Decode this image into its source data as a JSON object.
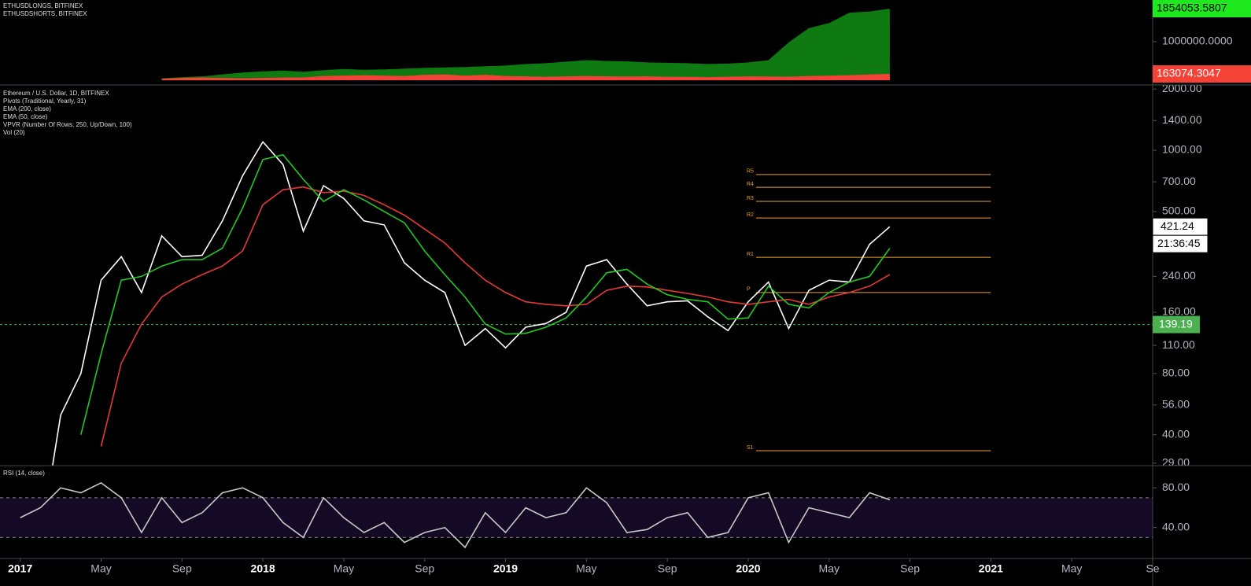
{
  "chart_data": [
    {
      "type": "area",
      "x": [
        "2017-08",
        "2017-09",
        "2017-10",
        "2017-11",
        "2017-12",
        "2018-01",
        "2018-02",
        "2018-03",
        "2018-04",
        "2018-05",
        "2018-06",
        "2018-07",
        "2018-08",
        "2018-09",
        "2018-10",
        "2018-11",
        "2018-12",
        "2019-01",
        "2019-02",
        "2019-03",
        "2019-04",
        "2019-05",
        "2019-06",
        "2019-07",
        "2019-08",
        "2019-09",
        "2019-10",
        "2019-11",
        "2019-12",
        "2020-01",
        "2020-02",
        "2020-03",
        "2020-04",
        "2020-05",
        "2020-06",
        "2020-07",
        "2020-08"
      ],
      "series": [
        {
          "name": "ETHUSDLONGS, BITFINEX",
          "color": "#0f7a12",
          "label_color": "#1ee81e",
          "values": [
            50000,
            80000,
            100000,
            150000,
            200000,
            230000,
            250000,
            220000,
            260000,
            290000,
            270000,
            280000,
            300000,
            320000,
            330000,
            340000,
            360000,
            380000,
            420000,
            440000,
            480000,
            520000,
            500000,
            490000,
            460000,
            450000,
            440000,
            420000,
            430000,
            460000,
            520000,
            980000,
            1350000,
            1480000,
            1750000,
            1780000,
            1854053.5807
          ]
        },
        {
          "name": "ETHUSDSHORTS, BITFINEX",
          "color": "#f44336",
          "label_color": "#f44336",
          "values": [
            40000,
            60000,
            70000,
            60000,
            50000,
            60000,
            70000,
            70000,
            110000,
            120000,
            130000,
            120000,
            110000,
            140000,
            150000,
            120000,
            140000,
            110000,
            100000,
            90000,
            100000,
            110000,
            100000,
            95000,
            100000,
            90000,
            85000,
            80000,
            90000,
            100000,
            95000,
            90000,
            110000,
            120000,
            130000,
            150000,
            163074.3047
          ]
        }
      ],
      "ylim": [
        -122000,
        2078000
      ],
      "yticks": [
        {
          "value": 1000000,
          "label": "1000000.0000"
        }
      ]
    },
    {
      "type": "line",
      "x": [
        "2017-01",
        "2017-02",
        "2017-03",
        "2017-04",
        "2017-05",
        "2017-06",
        "2017-07",
        "2017-08",
        "2017-09",
        "2017-10",
        "2017-11",
        "2017-12",
        "2018-01",
        "2018-02",
        "2018-03",
        "2018-04",
        "2018-05",
        "2018-06",
        "2018-07",
        "2018-08",
        "2018-09",
        "2018-10",
        "2018-11",
        "2018-12",
        "2019-01",
        "2019-02",
        "2019-03",
        "2019-04",
        "2019-05",
        "2019-06",
        "2019-07",
        "2019-08",
        "2019-09",
        "2019-10",
        "2019-11",
        "2019-12",
        "2020-01",
        "2020-02",
        "2020-03",
        "2020-04",
        "2020-05",
        "2020-06",
        "2020-07",
        "2020-08"
      ],
      "series": [
        {
          "name": "Ethereum / U.S. Dollar, 1D, BITFINEX",
          "color": "#ffffff",
          "values": [
            8,
            12,
            50,
            80,
            230,
            300,
            200,
            380,
            300,
            305,
            450,
            750,
            1100,
            850,
            400,
            670,
            580,
            450,
            430,
            280,
            230,
            200,
            110,
            133,
            107,
            135,
            141,
            160,
            270,
            290,
            220,
            172,
            180,
            182,
            152,
            130,
            180,
            225,
            133,
            205,
            230,
            225,
            345,
            421.24
          ]
        },
        {
          "name": "EMA (200, close)",
          "color": "#e53935",
          "values": [
            null,
            null,
            null,
            null,
            35,
            90,
            140,
            190,
            220,
            245,
            270,
            320,
            540,
            640,
            660,
            620,
            630,
            600,
            540,
            480,
            410,
            350,
            280,
            230,
            200,
            180,
            175,
            172,
            175,
            205,
            215,
            213,
            205,
            198,
            190,
            180,
            175,
            180,
            185,
            175,
            190,
            200,
            215,
            245
          ]
        },
        {
          "name": "EMA (50, close)",
          "color": "#22c922",
          "values": [
            null,
            null,
            null,
            40,
            100,
            230,
            240,
            270,
            290,
            290,
            330,
            520,
            900,
            950,
            720,
            560,
            640,
            570,
            500,
            440,
            320,
            245,
            190,
            140,
            125,
            126,
            135,
            150,
            190,
            250,
            260,
            220,
            195,
            185,
            180,
            148,
            150,
            215,
            175,
            168,
            200,
            225,
            240,
            330
          ]
        }
      ],
      "pivots": {
        "name": "Pivots (Traditional, Yearly, 31)",
        "color": "#f0a030",
        "x_range": [
          "2020-01",
          "2021-01"
        ],
        "levels": [
          {
            "label": "R5",
            "value": 760
          },
          {
            "label": "R4",
            "value": 658
          },
          {
            "label": "R3",
            "value": 561
          },
          {
            "label": "R2",
            "value": 465
          },
          {
            "label": "R1",
            "value": 298
          },
          {
            "label": "P",
            "value": 200
          },
          {
            "label": "S1",
            "value": 33.4
          }
        ]
      },
      "vpvr": "VPVR (Number Of Rows, 250, Up/Down, 100)",
      "volume": "Vol (20)",
      "hline": {
        "value": 139.19,
        "color": "#4caf50"
      },
      "countdown": "21:36:45",
      "log_scale": true,
      "ylim": [
        28.2,
        2094
      ],
      "yticks": [
        {
          "value": 29,
          "label": "29.00"
        },
        {
          "value": 40,
          "label": "40.00"
        },
        {
          "value": 56,
          "label": "56.00"
        },
        {
          "value": 80,
          "label": "80.00"
        },
        {
          "value": 110,
          "label": "110.00"
        },
        {
          "value": 160,
          "label": "160.00"
        },
        {
          "value": 240,
          "label": "240.00"
        },
        {
          "value": 500,
          "label": "500.00"
        },
        {
          "value": 700,
          "label": "700.00"
        },
        {
          "value": 1000,
          "label": "1000.00"
        },
        {
          "value": 1400,
          "label": "1400.00"
        },
        {
          "value": 2000,
          "label": "2000.00"
        }
      ],
      "xlim": [
        "2016-12",
        "2021-09"
      ],
      "xticks": [
        {
          "value": "2017-01",
          "label": "2017"
        },
        {
          "value": "2017-05",
          "label": "May"
        },
        {
          "value": "2017-09",
          "label": "Sep"
        },
        {
          "value": "2018-01",
          "label": "2018"
        },
        {
          "value": "2018-05",
          "label": "May"
        },
        {
          "value": "2018-09",
          "label": "Sep"
        },
        {
          "value": "2019-01",
          "label": "2019"
        },
        {
          "value": "2019-05",
          "label": "May"
        },
        {
          "value": "2019-09",
          "label": "Sep"
        },
        {
          "value": "2020-01",
          "label": "2020"
        },
        {
          "value": "2020-05",
          "label": "May"
        },
        {
          "value": "2020-09",
          "label": "Sep"
        },
        {
          "value": "2021-01",
          "label": "2021"
        },
        {
          "value": "2021-05",
          "label": "May"
        },
        {
          "value": "2021-09",
          "label": "Se"
        }
      ]
    },
    {
      "type": "line",
      "x": [
        "2017-01",
        "2017-02",
        "2017-03",
        "2017-04",
        "2017-05",
        "2017-06",
        "2017-07",
        "2017-08",
        "2017-09",
        "2017-10",
        "2017-11",
        "2017-12",
        "2018-01",
        "2018-02",
        "2018-03",
        "2018-04",
        "2018-05",
        "2018-06",
        "2018-07",
        "2018-08",
        "2018-09",
        "2018-10",
        "2018-11",
        "2018-12",
        "2019-01",
        "2019-02",
        "2019-03",
        "2019-04",
        "2019-05",
        "2019-06",
        "2019-07",
        "2019-08",
        "2019-09",
        "2019-10",
        "2019-11",
        "2019-12",
        "2020-01",
        "2020-02",
        "2020-03",
        "2020-04",
        "2020-05",
        "2020-06",
        "2020-07",
        "2020-08"
      ],
      "series": [
        {
          "name": "RSI (14, close)",
          "color": "#c8c8c8",
          "values": [
            50,
            60,
            80,
            75,
            85,
            70,
            35,
            70,
            45,
            55,
            75,
            80,
            70,
            45,
            30,
            70,
            50,
            35,
            45,
            25,
            35,
            40,
            20,
            55,
            35,
            60,
            50,
            55,
            80,
            65,
            35,
            38,
            50,
            55,
            30,
            35,
            70,
            75,
            25,
            60,
            55,
            50,
            75,
            68
          ]
        }
      ],
      "bands": [
        70,
        30
      ],
      "band_fill": "#150a26",
      "ylim": [
        8.8,
        102.4
      ],
      "yticks": [
        {
          "value": 40,
          "label": "40.00"
        },
        {
          "value": 80,
          "label": "80.00"
        }
      ]
    }
  ]
}
